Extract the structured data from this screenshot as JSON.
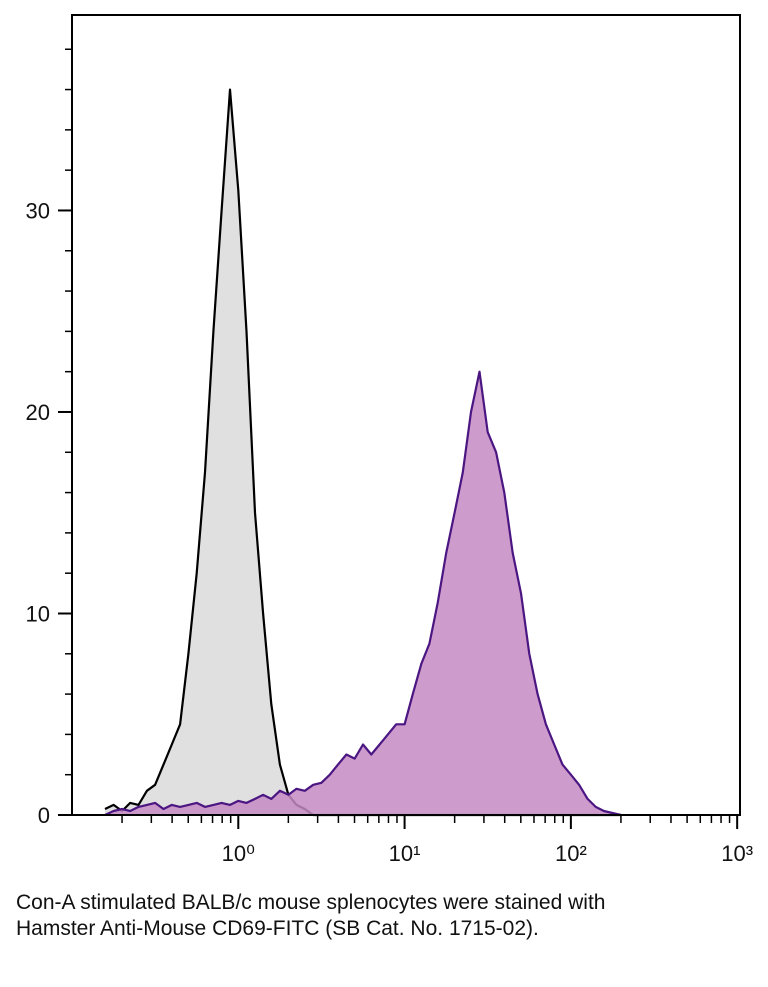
{
  "chart_data": {
    "type": "histogram-line",
    "xlog": true,
    "xlim": [
      0.1,
      1040
    ],
    "ylim": [
      0,
      39.7
    ],
    "xticks": [
      {
        "value": 1,
        "label": "10⁰"
      },
      {
        "value": 10,
        "label": "10¹"
      },
      {
        "value": 100,
        "label": "10²"
      },
      {
        "value": 1000,
        "label": "10³"
      }
    ],
    "xminorticks": [
      0.2,
      0.3,
      0.4,
      0.5,
      0.6,
      0.7,
      0.8,
      0.9,
      2,
      3,
      4,
      5,
      6,
      7,
      8,
      9,
      20,
      30,
      40,
      50,
      60,
      70,
      80,
      90,
      200,
      300,
      400,
      500,
      600,
      700,
      800,
      900
    ],
    "yticks": [
      0,
      10,
      20,
      30
    ],
    "yminorticks": [
      2,
      4,
      6,
      8,
      12,
      14,
      16,
      18,
      22,
      24,
      26,
      28,
      32,
      34,
      36,
      38
    ],
    "x": [
      0.158,
      0.178,
      0.2,
      0.224,
      0.251,
      0.282,
      0.316,
      0.355,
      0.398,
      0.447,
      0.501,
      0.562,
      0.631,
      0.708,
      0.794,
      0.891,
      1,
      1.12,
      1.26,
      1.41,
      1.58,
      1.78,
      2,
      2.24,
      2.51,
      2.82,
      3.16,
      3.55,
      3.98,
      4.47,
      5.01,
      5.62,
      6.31,
      7.08,
      7.94,
      8.91,
      10,
      11.2,
      12.6,
      14.1,
      15.8,
      17.8,
      20,
      22.4,
      25.1,
      28.2,
      31.6,
      35.5,
      39.8,
      44.7,
      50.1,
      56.2,
      63.1,
      70.8,
      79.4,
      89.1,
      100,
      112,
      126,
      141,
      158,
      178,
      200
    ],
    "series": [
      {
        "color": "#000000",
        "fill": "#e0e0e0",
        "values": [
          0.3,
          0.5,
          0.2,
          0.6,
          0.5,
          1.2,
          1.5,
          2.5,
          3.5,
          4.5,
          8,
          12,
          17,
          24,
          30,
          36,
          31,
          24,
          15,
          10,
          5.5,
          2.5,
          1,
          0.5,
          0.3,
          0,
          0,
          0,
          0,
          0,
          0,
          0,
          0,
          0,
          0,
          0,
          0,
          0,
          0,
          0,
          0,
          0,
          0,
          0,
          0,
          0,
          0,
          0,
          0,
          0,
          0,
          0,
          0,
          0,
          0,
          0,
          0,
          0,
          0,
          0,
          0,
          0,
          0
        ]
      },
      {
        "color": "#4b1682",
        "fill": "#c48bc4",
        "values": [
          0,
          0.2,
          0.3,
          0.2,
          0.4,
          0.5,
          0.6,
          0.3,
          0.5,
          0.4,
          0.5,
          0.6,
          0.4,
          0.5,
          0.6,
          0.5,
          0.7,
          0.6,
          0.8,
          1,
          0.8,
          1.2,
          1,
          1.3,
          1.2,
          1.5,
          1.6,
          2,
          2.5,
          3,
          2.8,
          3.5,
          3,
          3.5,
          4,
          4.5,
          4.5,
          6,
          7.5,
          8.5,
          10.5,
          13,
          15,
          17,
          20,
          22,
          19,
          18,
          16,
          13,
          11,
          8,
          6,
          4.5,
          3.5,
          2.5,
          2,
          1.5,
          0.8,
          0.4,
          0.2,
          0.1,
          0
        ]
      }
    ]
  },
  "caption": "Con-A stimulated BALB/c mouse splenocytes were stained with Hamster Anti-Mouse CD69-FITC (SB Cat. No. 1715-02)."
}
